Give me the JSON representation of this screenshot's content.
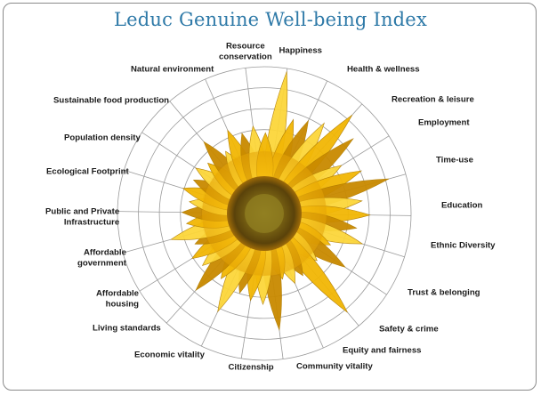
{
  "title": "Leduc Genuine Well-being Index",
  "indicators": [
    "Happiness",
    "Health & wellness",
    "Recreation & leisure",
    "Employment",
    "Time-use",
    "Education",
    "Ethnic Diversity",
    "Trust & belonging",
    "Safety & crime",
    "Equity and fairness",
    "Community vitality",
    "Citizenship",
    "Economic vitality",
    "Living standards",
    "Affordable\nhousing",
    "Affordable\ngovernment",
    "Public and Private\nInfrastructure",
    "Ecological Footprint",
    "Population density",
    "Sustainable food production",
    "Natural environment",
    "Resource\nconservation"
  ],
  "colors": {
    "title": "#2f7aa8",
    "grid": "#9a9a9a",
    "petal_main": "#f2b705",
    "petal_light": "#fcd63a",
    "petal_dark": "#c98a00",
    "center_outer": "#6b5410",
    "center_inner": "#8a7a1c",
    "sky": "#9fb4c8"
  }
}
